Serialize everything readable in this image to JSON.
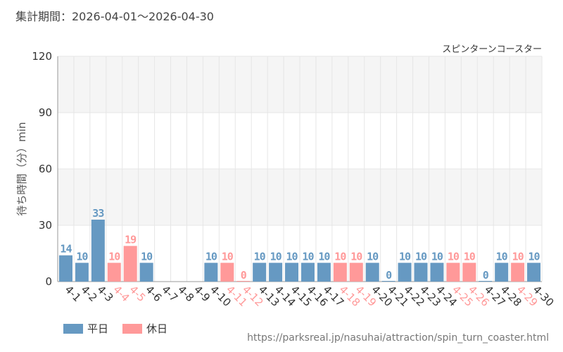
{
  "header": {
    "period": "集計期間：2026-04-01～2026-04-30"
  },
  "legend": {
    "weekday": "平日",
    "holiday": "休日"
  },
  "source": "https://parksreal.jp/nasuhai/attraction/spin_turn_coaster.html",
  "colors": {
    "weekday": "#6699c2",
    "holiday": "#ff9999",
    "band": "#f5f5f5",
    "grid": "#e6e6e6",
    "axis": "#999999"
  },
  "chart_data": {
    "type": "bar",
    "title": "スピンターンコースター",
    "ylabel": "待ち時間（分）min",
    "ylim": [
      0,
      120
    ],
    "yticks": [
      0,
      30,
      60,
      90,
      120
    ],
    "grid": true,
    "legend_position": "bottom-left",
    "categories": [
      "4-1",
      "4-2",
      "4-3",
      "4-4",
      "4-5",
      "4-6",
      "4-7",
      "4-8",
      "4-9",
      "4-10",
      "4-11",
      "4-12",
      "4-13",
      "4-14",
      "4-15",
      "4-16",
      "4-17",
      "4-18",
      "4-19",
      "4-20",
      "4-21",
      "4-22",
      "4-23",
      "4-24",
      "4-25",
      "4-26",
      "4-27",
      "4-28",
      "4-29",
      "4-30"
    ],
    "values": [
      14,
      10,
      33,
      10,
      19,
      10,
      null,
      null,
      null,
      10,
      10,
      0,
      10,
      10,
      10,
      10,
      10,
      10,
      10,
      10,
      0,
      10,
      10,
      10,
      10,
      10,
      0,
      10,
      10,
      10
    ],
    "day_type": [
      "weekday",
      "weekday",
      "weekday",
      "holiday",
      "holiday",
      "weekday",
      "weekday",
      "weekday",
      "weekday",
      "weekday",
      "holiday",
      "holiday",
      "weekday",
      "weekday",
      "weekday",
      "weekday",
      "weekday",
      "holiday",
      "holiday",
      "weekday",
      "weekday",
      "weekday",
      "weekday",
      "weekday",
      "holiday",
      "holiday",
      "weekday",
      "weekday",
      "holiday",
      "weekday"
    ]
  }
}
